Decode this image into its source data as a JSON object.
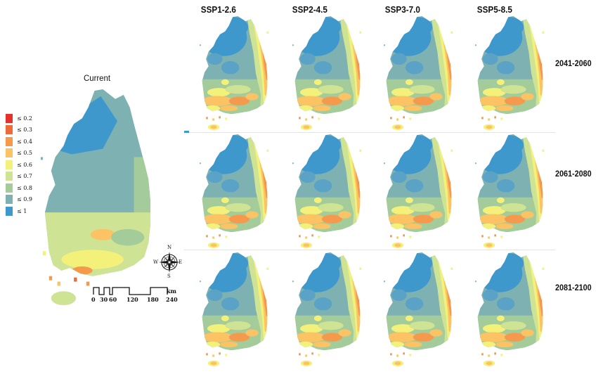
{
  "scenarios": [
    "SSP1-2.6",
    "SSP2-4.5",
    "SSP3-7.0",
    "SSP5-8.5"
  ],
  "periods": [
    "2041-2060",
    "2061-2080",
    "2081-2100"
  ],
  "current_title": "Current",
  "legend": {
    "items": [
      {
        "label": "≤ 0.2",
        "color": "#e3322b"
      },
      {
        "label": "≤ 0.3",
        "color": "#ee6a3a"
      },
      {
        "label": "≤ 0.4",
        "color": "#f59a4c"
      },
      {
        "label": "≤ 0.5",
        "color": "#fbc363"
      },
      {
        "label": "≤ 0.6",
        "color": "#f4f17a"
      },
      {
        "label": "≤ 0.7",
        "color": "#cfe395"
      },
      {
        "label": "≤ 0.8",
        "color": "#a3cc9a"
      },
      {
        "label": "≤ 0.9",
        "color": "#7eb2b2"
      },
      {
        "label": "≤ 1",
        "color": "#3f98cc"
      }
    ]
  },
  "scale_bar": {
    "ticks": [
      "0",
      "30",
      "60",
      "120",
      "180",
      "240"
    ],
    "unit": "km"
  },
  "compass": {
    "n": "N",
    "s": "S",
    "e": "E",
    "w": "W"
  }
}
